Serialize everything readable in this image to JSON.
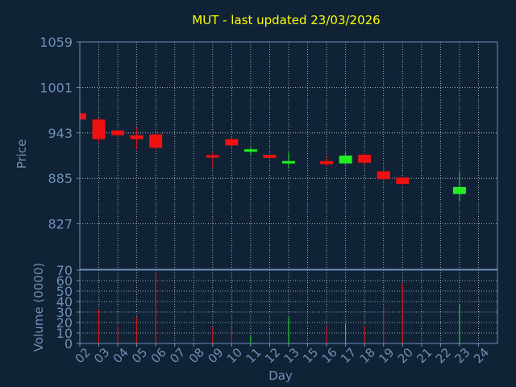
{
  "chart_data": {
    "type": "candlestick",
    "title": "MUT - last updated 23/03/2026",
    "xlabel": "Day",
    "price_panel": {
      "ylabel": "Price",
      "yticks": [
        "1059",
        "1001",
        "943",
        "885",
        "827"
      ],
      "ylim": [
        769,
        1059
      ],
      "grid": true
    },
    "volume_panel": {
      "ylabel": "Volume (0000)",
      "yticks": [
        "70",
        "60",
        "50",
        "40",
        "30",
        "20",
        "10",
        "0"
      ],
      "ylim": [
        0,
        70
      ],
      "grid": true
    },
    "x_categories": [
      "02",
      "03",
      "04",
      "05",
      "06",
      "07",
      "08",
      "09",
      "10",
      "11",
      "12",
      "13",
      "15",
      "16",
      "17",
      "18",
      "19",
      "20",
      "21",
      "22",
      "23",
      "24"
    ],
    "candles": [
      {
        "day": "02",
        "open": 968,
        "close": 960,
        "high": 968,
        "low": 960,
        "volume": 0
      },
      {
        "day": "03",
        "open": 960,
        "close": 935,
        "high": 962,
        "low": 931,
        "volume": 33
      },
      {
        "day": "04",
        "open": 946,
        "close": 940,
        "high": 948,
        "low": 938,
        "volume": 17
      },
      {
        "day": "05",
        "open": 940,
        "close": 935,
        "high": 950,
        "low": 922,
        "volume": 25
      },
      {
        "day": "06",
        "open": 941,
        "close": 924,
        "high": 944,
        "low": 922,
        "volume": 67
      },
      {
        "day": "09",
        "open": 914,
        "close": 912,
        "high": 918,
        "low": 899,
        "volume": 16
      },
      {
        "day": "10",
        "open": 935,
        "close": 927,
        "high": 938,
        "low": 924,
        "volume": 16
      },
      {
        "day": "11",
        "open": 919,
        "close": 922,
        "high": 925,
        "low": 915,
        "volume": 8
      },
      {
        "day": "12",
        "open": 915,
        "close": 911,
        "high": 918,
        "low": 909,
        "volume": 14
      },
      {
        "day": "13",
        "open": 905,
        "close": 906,
        "high": 918,
        "low": 898,
        "volume": 25
      },
      {
        "day": "16",
        "open": 907,
        "close": 903,
        "high": 913,
        "low": 900,
        "volume": 16
      },
      {
        "day": "17",
        "open": 904,
        "close": 914,
        "high": 918,
        "low": 903,
        "volume": 19
      },
      {
        "day": "18",
        "open": 915,
        "close": 905,
        "high": 917,
        "low": 902,
        "volume": 17
      },
      {
        "day": "19",
        "open": 894,
        "close": 884,
        "high": 902,
        "low": 881,
        "volume": 35
      },
      {
        "day": "20",
        "open": 886,
        "close": 878,
        "high": 887,
        "low": 876,
        "volume": 57
      },
      {
        "day": "23",
        "open": 865,
        "close": 874,
        "high": 893,
        "low": 856,
        "volume": 37
      }
    ],
    "colors": {
      "up": "#22ee22",
      "down": "#ee1111",
      "background": "#0f2236",
      "grid": "#c8d0d8",
      "axis": "#6f8fb5",
      "title": "#ffff00"
    }
  }
}
